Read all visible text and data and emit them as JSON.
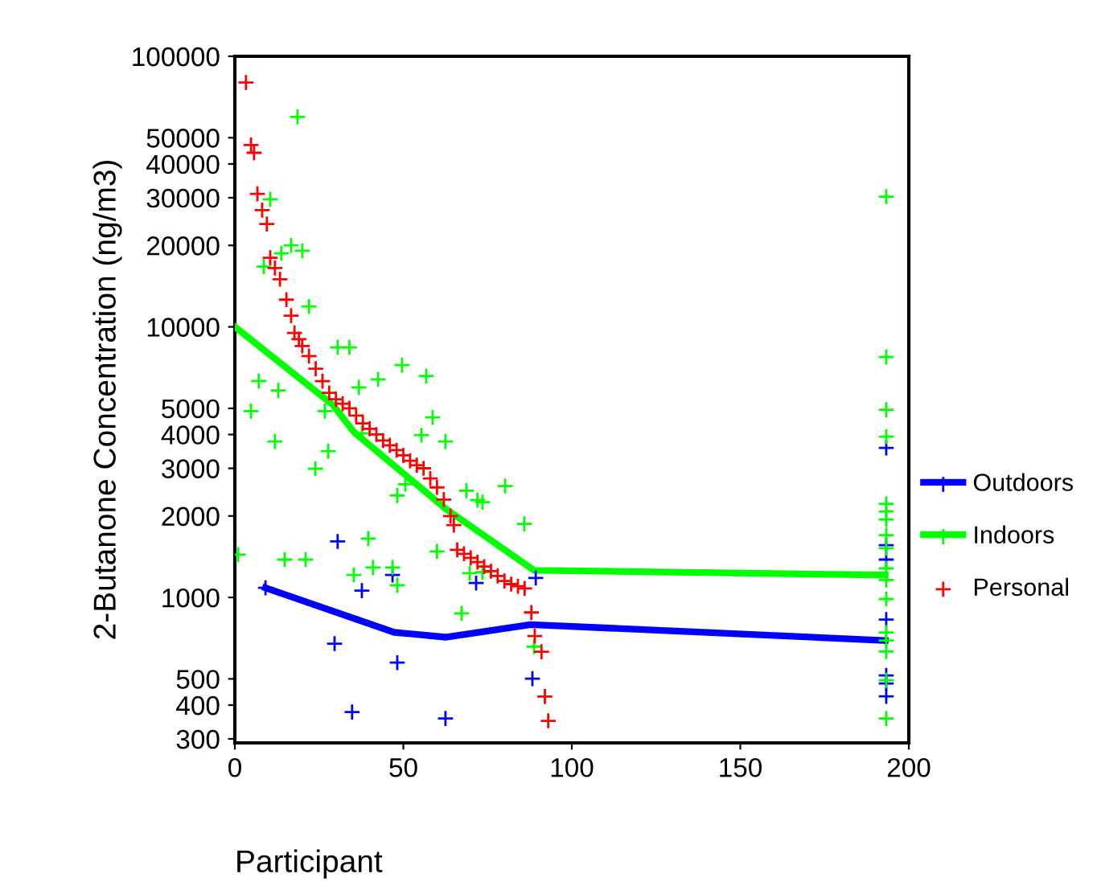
{
  "chart_data": {
    "type": "scatter",
    "xlabel": "Participant",
    "ylabel": "2-Butanone Concentration (ng/m3)",
    "log": "y",
    "xlim": [
      0,
      200
    ],
    "ylim": [
      290,
      100000
    ],
    "xticks": [
      0,
      50,
      100,
      150,
      200
    ],
    "yticks": [
      300,
      400,
      500,
      1000,
      2000,
      3000,
      4000,
      5000,
      10000,
      20000,
      30000,
      40000,
      50000,
      100000
    ],
    "grid": false,
    "legend": "right",
    "marker": "cross",
    "series": [
      {
        "type": "line",
        "marker": "none",
        "color": "#0000ff",
        "x": [
          9.1,
          47.3,
          62.5,
          87.8,
          193
        ],
        "values": [
          1085,
          743,
          713,
          794,
          693
        ]
      },
      {
        "type": "line",
        "marker": "none",
        "color": "#00ff00",
        "x": [
          0,
          29,
          35.3,
          62.5,
          88.8,
          193
        ],
        "values": [
          10000,
          5160,
          4090,
          2130,
          1260,
          1210
        ]
      },
      {
        "name": "Outdoors",
        "color": "#0000ff",
        "x": [
          9.1,
          30.5,
          37.7,
          46.8,
          71.6,
          89.3,
          29.6,
          48.2,
          34.8,
          62.5,
          88.3,
          193.3,
          193.3,
          193.3,
          193.3,
          193.3,
          193.3,
          193.3
        ],
        "values": [
          1085,
          1610,
          1060,
          1210,
          1130,
          1180,
          675,
          574,
          377,
          357,
          501,
          3570,
          1560,
          1380,
          828,
          515,
          481,
          431
        ]
      },
      {
        "name": "Indoors",
        "color": "#00ff00",
        "x": [
          18.6,
          10.5,
          16.7,
          20,
          13.8,
          8.6,
          22,
          30.5,
          34,
          49.6,
          7.1,
          12.9,
          4.8,
          56.8,
          42.5,
          36.8,
          26.7,
          11.9,
          27.7,
          23.9,
          58.7,
          55.4,
          62.5,
          37.7,
          50.6,
          48.2,
          68.7,
          72,
          73.5,
          80.2,
          85.9,
          1,
          14.8,
          21,
          39.6,
          60,
          41,
          35.3,
          46.8,
          48.2,
          69.7,
          73.5,
          67.3,
          88.8,
          193.3,
          193.3,
          193.3,
          193.3,
          193.3,
          193.3,
          193.3,
          193.3,
          193.3,
          193.3,
          193.3,
          193.3,
          193.3,
          193.3,
          193.3,
          193.3,
          193.3
        ],
        "values": [
          59700,
          29600,
          20000,
          19100,
          18700,
          16700,
          11900,
          8400,
          8400,
          7220,
          6310,
          5820,
          4880,
          6580,
          6400,
          5970,
          4880,
          3770,
          3470,
          2990,
          4630,
          3980,
          3770,
          4040,
          2620,
          2380,
          2480,
          2290,
          2250,
          2580,
          1870,
          1440,
          1380,
          1380,
          1650,
          1480,
          1290,
          1210,
          1290,
          1110,
          1230,
          1240,
          873,
          658,
          30300,
          7730,
          4940,
          3930,
          2220,
          2080,
          1940,
          1700,
          1520,
          1280,
          1160,
          987,
          742,
          693,
          631,
          494,
          357
        ]
      },
      {
        "name": "Personal",
        "color": "#ff0000",
        "x": [
          3.3,
          4.8,
          5.7,
          6.7,
          8.1,
          9.5,
          10.5,
          11.9,
          13.4,
          15.3,
          16.7,
          17.7,
          19,
          20,
          22,
          24,
          26,
          28,
          30,
          32,
          34,
          36,
          38,
          40,
          42,
          44,
          46,
          48,
          50,
          52,
          54,
          56,
          58,
          60,
          62,
          64,
          65,
          66,
          68,
          70,
          72,
          74,
          76,
          78,
          80,
          82,
          84,
          86,
          88,
          89,
          91,
          92,
          93
        ],
        "values": [
          80000,
          47000,
          44000,
          31000,
          27000,
          24000,
          18000,
          16500,
          15000,
          12600,
          11000,
          9500,
          9000,
          8500,
          7800,
          7000,
          6300,
          5700,
          5400,
          5200,
          5000,
          4700,
          4400,
          4200,
          4000,
          3800,
          3650,
          3500,
          3350,
          3200,
          3080,
          3000,
          2750,
          2550,
          2300,
          2000,
          1850,
          1500,
          1450,
          1400,
          1350,
          1300,
          1250,
          1200,
          1150,
          1120,
          1100,
          1080,
          880,
          720,
          630,
          430,
          350
        ]
      }
    ]
  }
}
